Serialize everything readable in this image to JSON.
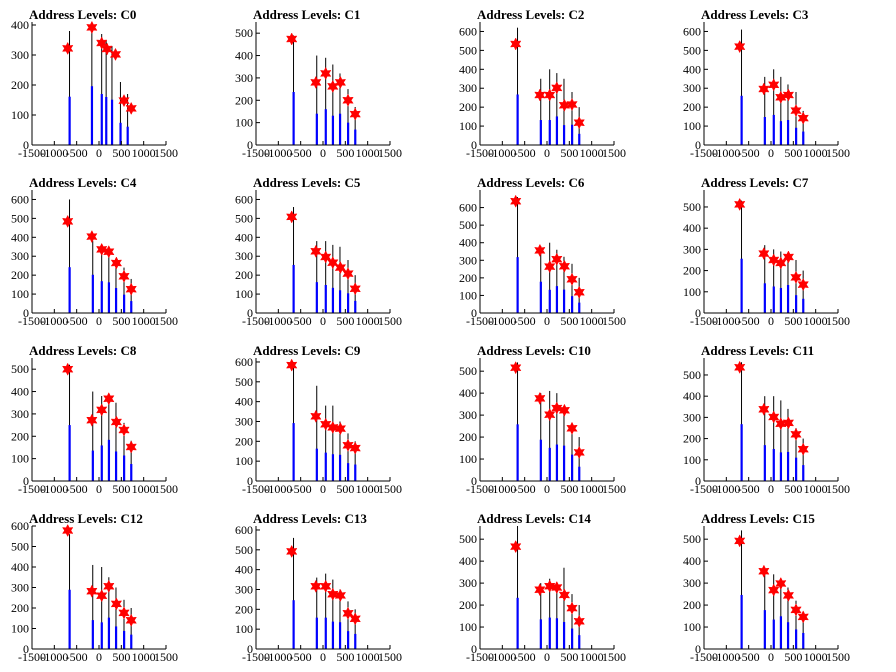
{
  "chart_data": [
    {
      "type": "bar",
      "title": "Address Levels: C0",
      "xlim": [
        -1500,
        1500
      ],
      "ylim": [
        0,
        410
      ],
      "yticks": [
        0,
        100,
        200,
        300,
        400
      ],
      "tall_bars": [
        {
          "x": -660,
          "y": 380
        },
        {
          "x": -160,
          "y": 400
        },
        {
          "x": 60,
          "y": 370
        },
        {
          "x": 160,
          "y": 350
        },
        {
          "x": 290,
          "y": 330
        },
        {
          "x": 480,
          "y": 210
        },
        {
          "x": 640,
          "y": 170
        }
      ],
      "fitted_peaks": [
        {
          "x": -700,
          "y": 322
        },
        {
          "x": -160,
          "y": 392
        },
        {
          "x": 60,
          "y": 340
        },
        {
          "x": 180,
          "y": 320
        },
        {
          "x": 370,
          "y": 302
        },
        {
          "x": 560,
          "y": 148
        },
        {
          "x": 720,
          "y": 122
        }
      ]
    },
    {
      "type": "bar",
      "title": "Address Levels: C1",
      "xlim": [
        -1500,
        1500
      ],
      "ylim": [
        0,
        550
      ],
      "yticks": [
        0,
        100,
        200,
        300,
        400,
        500
      ],
      "tall_bars": [
        {
          "x": -660,
          "y": 490
        },
        {
          "x": -140,
          "y": 400
        },
        {
          "x": 60,
          "y": 390
        },
        {
          "x": 220,
          "y": 360
        },
        {
          "x": 380,
          "y": 320
        },
        {
          "x": 560,
          "y": 250
        },
        {
          "x": 720,
          "y": 170
        }
      ],
      "fitted_peaks": [
        {
          "x": -700,
          "y": 474
        },
        {
          "x": -160,
          "y": 280
        },
        {
          "x": 60,
          "y": 320
        },
        {
          "x": 220,
          "y": 262
        },
        {
          "x": 390,
          "y": 280
        },
        {
          "x": 560,
          "y": 200
        },
        {
          "x": 720,
          "y": 138
        }
      ]
    },
    {
      "type": "bar",
      "title": "Address Levels: C2",
      "xlim": [
        -1500,
        1500
      ],
      "ylim": [
        0,
        650
      ],
      "yticks": [
        0,
        100,
        200,
        300,
        400,
        500,
        600
      ],
      "tall_bars": [
        {
          "x": -660,
          "y": 620
        },
        {
          "x": -140,
          "y": 350
        },
        {
          "x": 60,
          "y": 400
        },
        {
          "x": 220,
          "y": 380
        },
        {
          "x": 380,
          "y": 350
        },
        {
          "x": 560,
          "y": 280
        },
        {
          "x": 720,
          "y": 200
        }
      ],
      "fitted_peaks": [
        {
          "x": -700,
          "y": 534
        },
        {
          "x": -160,
          "y": 264
        },
        {
          "x": 60,
          "y": 264
        },
        {
          "x": 220,
          "y": 302
        },
        {
          "x": 390,
          "y": 210
        },
        {
          "x": 560,
          "y": 214
        },
        {
          "x": 720,
          "y": 118
        }
      ]
    },
    {
      "type": "bar",
      "title": "Address Levels: C3",
      "xlim": [
        -1500,
        1500
      ],
      "ylim": [
        0,
        650
      ],
      "yticks": [
        0,
        100,
        200,
        300,
        400,
        500,
        600
      ],
      "tall_bars": [
        {
          "x": -660,
          "y": 610
        },
        {
          "x": -140,
          "y": 360
        },
        {
          "x": 60,
          "y": 400
        },
        {
          "x": 220,
          "y": 360
        },
        {
          "x": 380,
          "y": 320
        },
        {
          "x": 560,
          "y": 280
        },
        {
          "x": 720,
          "y": 180
        }
      ],
      "fitted_peaks": [
        {
          "x": -700,
          "y": 520
        },
        {
          "x": -160,
          "y": 296
        },
        {
          "x": 60,
          "y": 318
        },
        {
          "x": 220,
          "y": 252
        },
        {
          "x": 390,
          "y": 264
        },
        {
          "x": 560,
          "y": 182
        },
        {
          "x": 720,
          "y": 142
        }
      ]
    },
    {
      "type": "bar",
      "title": "Address Levels: C4",
      "xlim": [
        -1500,
        1500
      ],
      "ylim": [
        0,
        650
      ],
      "yticks": [
        0,
        100,
        200,
        300,
        400,
        500,
        600
      ],
      "tall_bars": [
        {
          "x": -660,
          "y": 600
        },
        {
          "x": -140,
          "y": 380
        },
        {
          "x": 60,
          "y": 360
        },
        {
          "x": 220,
          "y": 340
        },
        {
          "x": 380,
          "y": 290
        },
        {
          "x": 560,
          "y": 240
        },
        {
          "x": 720,
          "y": 180
        }
      ],
      "fitted_peaks": [
        {
          "x": -700,
          "y": 484
        },
        {
          "x": -160,
          "y": 404
        },
        {
          "x": 60,
          "y": 336
        },
        {
          "x": 220,
          "y": 324
        },
        {
          "x": 390,
          "y": 264
        },
        {
          "x": 560,
          "y": 194
        },
        {
          "x": 720,
          "y": 126
        }
      ]
    },
    {
      "type": "bar",
      "title": "Address Levels: C5",
      "xlim": [
        -1500,
        1500
      ],
      "ylim": [
        0,
        650
      ],
      "yticks": [
        0,
        100,
        200,
        300,
        400,
        500,
        600
      ],
      "tall_bars": [
        {
          "x": -660,
          "y": 560
        },
        {
          "x": -140,
          "y": 380
        },
        {
          "x": 60,
          "y": 380
        },
        {
          "x": 220,
          "y": 360
        },
        {
          "x": 380,
          "y": 350
        },
        {
          "x": 560,
          "y": 280
        },
        {
          "x": 720,
          "y": 200
        }
      ],
      "fitted_peaks": [
        {
          "x": -700,
          "y": 508
        },
        {
          "x": -160,
          "y": 326
        },
        {
          "x": 60,
          "y": 296
        },
        {
          "x": 220,
          "y": 266
        },
        {
          "x": 390,
          "y": 240
        },
        {
          "x": 560,
          "y": 208
        },
        {
          "x": 720,
          "y": 128
        }
      ]
    },
    {
      "type": "bar",
      "title": "Address Levels: C6",
      "xlim": [
        -1500,
        1500
      ],
      "ylim": [
        0,
        700
      ],
      "yticks": [
        0,
        100,
        200,
        300,
        400,
        500,
        600
      ],
      "tall_bars": [
        {
          "x": -660,
          "y": 660
        },
        {
          "x": -140,
          "y": 380
        },
        {
          "x": 60,
          "y": 400
        },
        {
          "x": 220,
          "y": 360
        },
        {
          "x": 380,
          "y": 320
        },
        {
          "x": 560,
          "y": 280
        },
        {
          "x": 720,
          "y": 200
        }
      ],
      "fitted_peaks": [
        {
          "x": -700,
          "y": 636
        },
        {
          "x": -160,
          "y": 356
        },
        {
          "x": 60,
          "y": 264
        },
        {
          "x": 220,
          "y": 306
        },
        {
          "x": 390,
          "y": 266
        },
        {
          "x": 560,
          "y": 192
        },
        {
          "x": 720,
          "y": 118
        }
      ]
    },
    {
      "type": "bar",
      "title": "Address Levels: C7",
      "xlim": [
        -1500,
        1500
      ],
      "ylim": [
        0,
        580
      ],
      "yticks": [
        0,
        100,
        200,
        300,
        400,
        500
      ],
      "tall_bars": [
        {
          "x": -660,
          "y": 530
        },
        {
          "x": -140,
          "y": 320
        },
        {
          "x": 60,
          "y": 300
        },
        {
          "x": 220,
          "y": 290
        },
        {
          "x": 380,
          "y": 280
        },
        {
          "x": 560,
          "y": 250
        },
        {
          "x": 720,
          "y": 200
        }
      ],
      "fitted_peaks": [
        {
          "x": -700,
          "y": 512
        },
        {
          "x": -160,
          "y": 280
        },
        {
          "x": 60,
          "y": 250
        },
        {
          "x": 220,
          "y": 236
        },
        {
          "x": 390,
          "y": 264
        },
        {
          "x": 560,
          "y": 168
        },
        {
          "x": 720,
          "y": 134
        }
      ]
    },
    {
      "type": "bar",
      "title": "Address Levels: C8",
      "xlim": [
        -1500,
        1500
      ],
      "ylim": [
        0,
        550
      ],
      "yticks": [
        0,
        100,
        200,
        300,
        400,
        500
      ],
      "tall_bars": [
        {
          "x": -660,
          "y": 520
        },
        {
          "x": -140,
          "y": 400
        },
        {
          "x": 60,
          "y": 380
        },
        {
          "x": 220,
          "y": 380
        },
        {
          "x": 380,
          "y": 350
        },
        {
          "x": 560,
          "y": 260
        },
        {
          "x": 720,
          "y": 180
        }
      ],
      "fitted_peaks": [
        {
          "x": -700,
          "y": 500
        },
        {
          "x": -160,
          "y": 272
        },
        {
          "x": 60,
          "y": 318
        },
        {
          "x": 220,
          "y": 368
        },
        {
          "x": 390,
          "y": 264
        },
        {
          "x": 560,
          "y": 228
        },
        {
          "x": 720,
          "y": 152
        }
      ]
    },
    {
      "type": "bar",
      "title": "Address Levels: C9",
      "xlim": [
        -1500,
        1500
      ],
      "ylim": [
        0,
        620
      ],
      "yticks": [
        0,
        100,
        200,
        300,
        400,
        500,
        600
      ],
      "tall_bars": [
        {
          "x": -660,
          "y": 600
        },
        {
          "x": -140,
          "y": 480
        },
        {
          "x": 60,
          "y": 380
        },
        {
          "x": 220,
          "y": 380
        },
        {
          "x": 380,
          "y": 300
        },
        {
          "x": 560,
          "y": 240
        },
        {
          "x": 720,
          "y": 200
        }
      ],
      "fitted_peaks": [
        {
          "x": -700,
          "y": 584
        },
        {
          "x": -160,
          "y": 326
        },
        {
          "x": 60,
          "y": 286
        },
        {
          "x": 220,
          "y": 270
        },
        {
          "x": 390,
          "y": 264
        },
        {
          "x": 560,
          "y": 180
        },
        {
          "x": 720,
          "y": 166
        }
      ]
    },
    {
      "type": "bar",
      "title": "Address Levels: C10",
      "xlim": [
        -1500,
        1500
      ],
      "ylim": [
        0,
        560
      ],
      "yticks": [
        0,
        100,
        200,
        300,
        400,
        500
      ],
      "tall_bars": [
        {
          "x": -660,
          "y": 540
        },
        {
          "x": -140,
          "y": 400
        },
        {
          "x": 60,
          "y": 410
        },
        {
          "x": 220,
          "y": 400
        },
        {
          "x": 380,
          "y": 320
        },
        {
          "x": 560,
          "y": 250
        },
        {
          "x": 720,
          "y": 200
        }
      ],
      "fitted_peaks": [
        {
          "x": -700,
          "y": 516
        },
        {
          "x": -160,
          "y": 376
        },
        {
          "x": 60,
          "y": 302
        },
        {
          "x": 220,
          "y": 332
        },
        {
          "x": 390,
          "y": 322
        },
        {
          "x": 560,
          "y": 240
        },
        {
          "x": 720,
          "y": 130
        }
      ]
    },
    {
      "type": "bar",
      "title": "Address Levels: C11",
      "xlim": [
        -1500,
        1500
      ],
      "ylim": [
        0,
        580
      ],
      "yticks": [
        0,
        100,
        200,
        300,
        400,
        500
      ],
      "tall_bars": [
        {
          "x": -660,
          "y": 560
        },
        {
          "x": -140,
          "y": 400
        },
        {
          "x": 60,
          "y": 400
        },
        {
          "x": 220,
          "y": 380
        },
        {
          "x": 380,
          "y": 340
        },
        {
          "x": 560,
          "y": 250
        },
        {
          "x": 720,
          "y": 200
        }
      ],
      "fitted_peaks": [
        {
          "x": -700,
          "y": 536
        },
        {
          "x": -160,
          "y": 338
        },
        {
          "x": 60,
          "y": 302
        },
        {
          "x": 220,
          "y": 270
        },
        {
          "x": 390,
          "y": 274
        },
        {
          "x": 560,
          "y": 220
        },
        {
          "x": 720,
          "y": 150
        }
      ]
    },
    {
      "type": "bar",
      "title": "Address Levels: C12",
      "xlim": [
        -1500,
        1500
      ],
      "ylim": [
        0,
        600
      ],
      "yticks": [
        0,
        100,
        200,
        300,
        400,
        500,
        600
      ],
      "tall_bars": [
        {
          "x": -660,
          "y": 560
        },
        {
          "x": -140,
          "y": 410
        },
        {
          "x": 60,
          "y": 400
        },
        {
          "x": 220,
          "y": 350
        },
        {
          "x": 380,
          "y": 300
        },
        {
          "x": 560,
          "y": 240
        },
        {
          "x": 720,
          "y": 200
        }
      ],
      "fitted_peaks": [
        {
          "x": -700,
          "y": 578
        },
        {
          "x": -160,
          "y": 282
        },
        {
          "x": 60,
          "y": 260
        },
        {
          "x": 220,
          "y": 306
        },
        {
          "x": 390,
          "y": 220
        },
        {
          "x": 560,
          "y": 176
        },
        {
          "x": 720,
          "y": 140
        }
      ]
    },
    {
      "type": "bar",
      "title": "Address Levels: C13",
      "xlim": [
        -1500,
        1500
      ],
      "ylim": [
        0,
        620
      ],
      "yticks": [
        0,
        100,
        200,
        300,
        400,
        500,
        600
      ],
      "tall_bars": [
        {
          "x": -660,
          "y": 560
        },
        {
          "x": -140,
          "y": 360
        },
        {
          "x": 60,
          "y": 380
        },
        {
          "x": 220,
          "y": 350
        },
        {
          "x": 380,
          "y": 300
        },
        {
          "x": 560,
          "y": 240
        },
        {
          "x": 720,
          "y": 200
        }
      ],
      "fitted_peaks": [
        {
          "x": -700,
          "y": 492
        },
        {
          "x": -160,
          "y": 316
        },
        {
          "x": 60,
          "y": 316
        },
        {
          "x": 220,
          "y": 276
        },
        {
          "x": 390,
          "y": 270
        },
        {
          "x": 560,
          "y": 180
        },
        {
          "x": 720,
          "y": 152
        }
      ]
    },
    {
      "type": "bar",
      "title": "Address Levels: C14",
      "xlim": [
        -1500,
        1500
      ],
      "ylim": [
        0,
        560
      ],
      "yticks": [
        0,
        100,
        200,
        300,
        400,
        500
      ],
      "tall_bars": [
        {
          "x": -660,
          "y": 560
        },
        {
          "x": -140,
          "y": 300
        },
        {
          "x": 60,
          "y": 320
        },
        {
          "x": 220,
          "y": 300
        },
        {
          "x": 380,
          "y": 370
        },
        {
          "x": 560,
          "y": 250
        },
        {
          "x": 720,
          "y": 200
        }
      ],
      "fitted_peaks": [
        {
          "x": -700,
          "y": 466
        },
        {
          "x": -160,
          "y": 270
        },
        {
          "x": 60,
          "y": 286
        },
        {
          "x": 220,
          "y": 280
        },
        {
          "x": 390,
          "y": 246
        },
        {
          "x": 560,
          "y": 186
        },
        {
          "x": 720,
          "y": 126
        }
      ]
    },
    {
      "type": "bar",
      "title": "Address Levels: C15",
      "xlim": [
        -1500,
        1500
      ],
      "ylim": [
        0,
        560
      ],
      "yticks": [
        0,
        100,
        200,
        300,
        400,
        500
      ],
      "tall_bars": [
        {
          "x": -660,
          "y": 540
        },
        {
          "x": -140,
          "y": 360
        },
        {
          "x": 60,
          "y": 340
        },
        {
          "x": 220,
          "y": 320
        },
        {
          "x": 380,
          "y": 280
        },
        {
          "x": 560,
          "y": 220
        },
        {
          "x": 720,
          "y": 160
        }
      ],
      "fitted_peaks": [
        {
          "x": -700,
          "y": 492
        },
        {
          "x": -160,
          "y": 354
        },
        {
          "x": 60,
          "y": 268
        },
        {
          "x": 220,
          "y": 298
        },
        {
          "x": 390,
          "y": 244
        },
        {
          "x": 560,
          "y": 178
        },
        {
          "x": 720,
          "y": 146
        }
      ]
    }
  ],
  "xticks": [
    -1500,
    -1000,
    -500,
    0,
    500,
    1000,
    1500
  ],
  "colors": {
    "bar_outline": "#000000",
    "bar_fill": "#0000ff",
    "marker": "#ff0000",
    "axis": "#000000"
  }
}
